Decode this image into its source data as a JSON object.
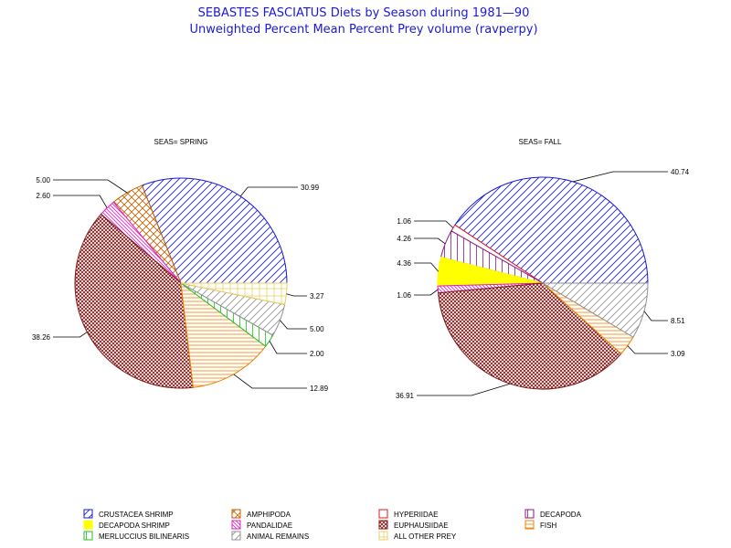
{
  "chart_data": {
    "type": "pie",
    "title": "SEBASTES FASCIATUS Diets by Season during 1981—90",
    "subtitle": "Unweighted Percent Mean Percent Prey  volume (ravperpy)",
    "legend_position": "bottom",
    "categories": [
      {
        "key": "crustacea_shrimp",
        "name": "CRUSTACEA SHRIMP",
        "color": "#1a1ad6",
        "pattern": "diag-up"
      },
      {
        "key": "amphipoda",
        "name": "AMPHIPODA",
        "color": "#c06000",
        "pattern": "cross"
      },
      {
        "key": "hyperiidae",
        "name": "HYPERIIDAE",
        "color": "#e01818",
        "pattern": "none"
      },
      {
        "key": "decapoda",
        "name": "DECAPODA",
        "color": "#8a1a8a",
        "pattern": "vert"
      },
      {
        "key": "decapoda_shrimp",
        "name": "DECAPODA SHRIMP",
        "color": "#ffff00",
        "pattern": "solid"
      },
      {
        "key": "pandalidae",
        "name": "PANDALIDAE",
        "color": "#e020c0",
        "pattern": "diag-down"
      },
      {
        "key": "euphausiidae",
        "name": "EUPHAUSIIDAE",
        "color": "#801818",
        "pattern": "xhatch"
      },
      {
        "key": "fish",
        "name": "FISH",
        "color": "#f08000",
        "pattern": "horiz"
      },
      {
        "key": "merluccius_bilinearis",
        "name": "MERLUCCIUS BILINEARIS",
        "color": "#20c020",
        "pattern": "vert"
      },
      {
        "key": "animal_remains",
        "name": "ANIMAL REMAINS",
        "color": "#909090",
        "pattern": "diag-up"
      },
      {
        "key": "all_other_prey",
        "name": "ALL OTHER PREY",
        "color": "#e8d060",
        "pattern": "grid"
      }
    ],
    "pies": [
      {
        "label": "SEAS= SPRING",
        "slices": [
          {
            "key": "crustacea_shrimp",
            "value": 30.99,
            "value_label": "30.99"
          },
          {
            "key": "amphipoda",
            "value": 5.0,
            "value_label": "5.00"
          },
          {
            "key": "pandalidae",
            "value": 2.6,
            "value_label": "2.60"
          },
          {
            "key": "euphausiidae",
            "value": 38.26,
            "value_label": "38.26"
          },
          {
            "key": "fish",
            "value": 12.89,
            "value_label": "12.89"
          },
          {
            "key": "merluccius_bilinearis",
            "value": 2.0,
            "value_label": "2.00"
          },
          {
            "key": "animal_remains",
            "value": 5.0,
            "value_label": "5.00"
          },
          {
            "key": "all_other_prey",
            "value": 3.27,
            "value_label": "3.27"
          }
        ]
      },
      {
        "label": "SEAS= FALL",
        "slices": [
          {
            "key": "crustacea_shrimp",
            "value": 40.74,
            "value_label": "40.74"
          },
          {
            "key": "hyperiidae",
            "value": 1.06,
            "value_label": "1.06"
          },
          {
            "key": "decapoda",
            "value": 4.26,
            "value_label": "4.26"
          },
          {
            "key": "decapoda_shrimp",
            "value": 4.36,
            "value_label": "4.36"
          },
          {
            "key": "pandalidae",
            "value": 1.06,
            "value_label": "1.06"
          },
          {
            "key": "euphausiidae",
            "value": 36.91,
            "value_label": "36.91"
          },
          {
            "key": "fish",
            "value": 3.09,
            "value_label": "3.09"
          },
          {
            "key": "animal_remains",
            "value": 8.51,
            "value_label": "8.51"
          }
        ]
      }
    ]
  }
}
